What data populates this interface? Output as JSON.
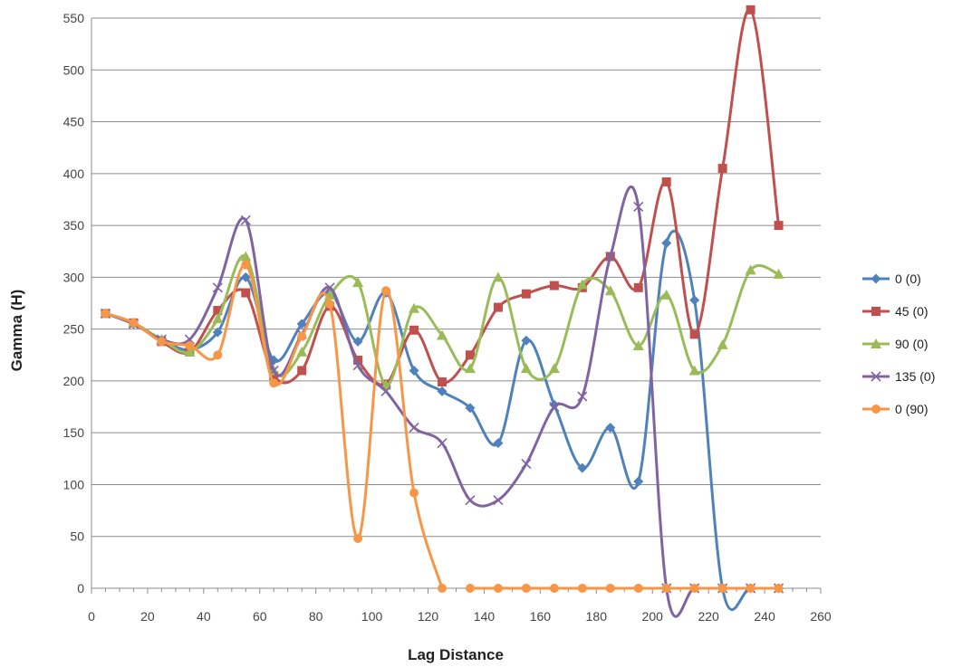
{
  "chart_data": {
    "type": "line",
    "smooth": true,
    "xlabel": "Lag Distance",
    "ylabel": "Gamma (H)",
    "xlim": [
      0,
      260
    ],
    "ylim": [
      0,
      550
    ],
    "x_ticks": [
      0,
      20,
      40,
      60,
      80,
      100,
      120,
      140,
      160,
      180,
      200,
      220,
      240,
      260
    ],
    "y_ticks": [
      0,
      50,
      100,
      150,
      200,
      250,
      300,
      350,
      400,
      450,
      500,
      550
    ],
    "grid": "horizontal",
    "legend_position": "right",
    "series": [
      {
        "name": "0 (0)",
        "color": "#4f81bd",
        "marker": "diamond",
        "x": [
          5,
          15,
          25,
          35,
          45,
          55,
          65,
          75,
          85,
          95,
          105,
          115,
          125,
          135,
          145,
          155,
          165,
          175,
          185,
          195,
          205,
          215,
          225,
          235,
          245
        ],
        "y": [
          265,
          255,
          240,
          230,
          247,
          300,
          220,
          255,
          285,
          238,
          285,
          210,
          190,
          174,
          140,
          239,
          177,
          116,
          155,
          103,
          333,
          278,
          0,
          0,
          0
        ]
      },
      {
        "name": "45 (0)",
        "color": "#c0504d",
        "marker": "square",
        "x": [
          5,
          15,
          25,
          35,
          45,
          55,
          65,
          75,
          85,
          95,
          105,
          115,
          125,
          135,
          145,
          155,
          165,
          175,
          185,
          195,
          205,
          215,
          225,
          235,
          245
        ],
        "y": [
          265,
          256,
          238,
          228,
          268,
          285,
          205,
          210,
          272,
          220,
          197,
          249,
          199,
          225,
          271,
          284,
          292,
          290,
          320,
          290,
          392,
          245,
          405,
          558,
          350
        ]
      },
      {
        "name": "90 (0)",
        "color": "#9bbb59",
        "marker": "triangle",
        "x": [
          5,
          15,
          25,
          35,
          45,
          55,
          65,
          75,
          85,
          95,
          105,
          115,
          125,
          135,
          145,
          155,
          165,
          175,
          185,
          195,
          205,
          215,
          225,
          235,
          245
        ],
        "y": [
          265,
          256,
          240,
          228,
          260,
          320,
          210,
          228,
          283,
          295,
          196,
          270,
          244,
          212,
          300,
          212,
          212,
          293,
          287,
          234,
          283,
          210,
          235,
          307,
          303
        ]
      },
      {
        "name": "135 (0)",
        "color": "#8064a2",
        "marker": "x",
        "x": [
          5,
          15,
          25,
          35,
          45,
          55,
          65,
          75,
          85,
          95,
          105,
          115,
          125,
          135,
          145,
          155,
          165,
          175,
          185,
          195,
          205,
          215,
          225,
          235,
          245
        ],
        "y": [
          265,
          255,
          240,
          240,
          290,
          355,
          210,
          245,
          290,
          215,
          190,
          155,
          140,
          85,
          85,
          120,
          175,
          185,
          320,
          368,
          0,
          0,
          0,
          0,
          0
        ]
      },
      {
        "name": "0 (90)",
        "color": "#f79646",
        "marker": "circle",
        "x": [
          5,
          15,
          25,
          35,
          45,
          55,
          65,
          75,
          85,
          95,
          105,
          115,
          125,
          135,
          145,
          155,
          165,
          175,
          185,
          195,
          205,
          215,
          225,
          235,
          245
        ],
        "y": [
          265,
          256,
          238,
          234,
          225,
          312,
          198,
          243,
          274,
          48,
          287,
          92,
          0,
          0,
          0,
          0,
          0,
          0,
          0,
          0,
          0,
          0,
          0,
          0,
          0
        ],
        "gap_after_index": 12
      }
    ]
  }
}
